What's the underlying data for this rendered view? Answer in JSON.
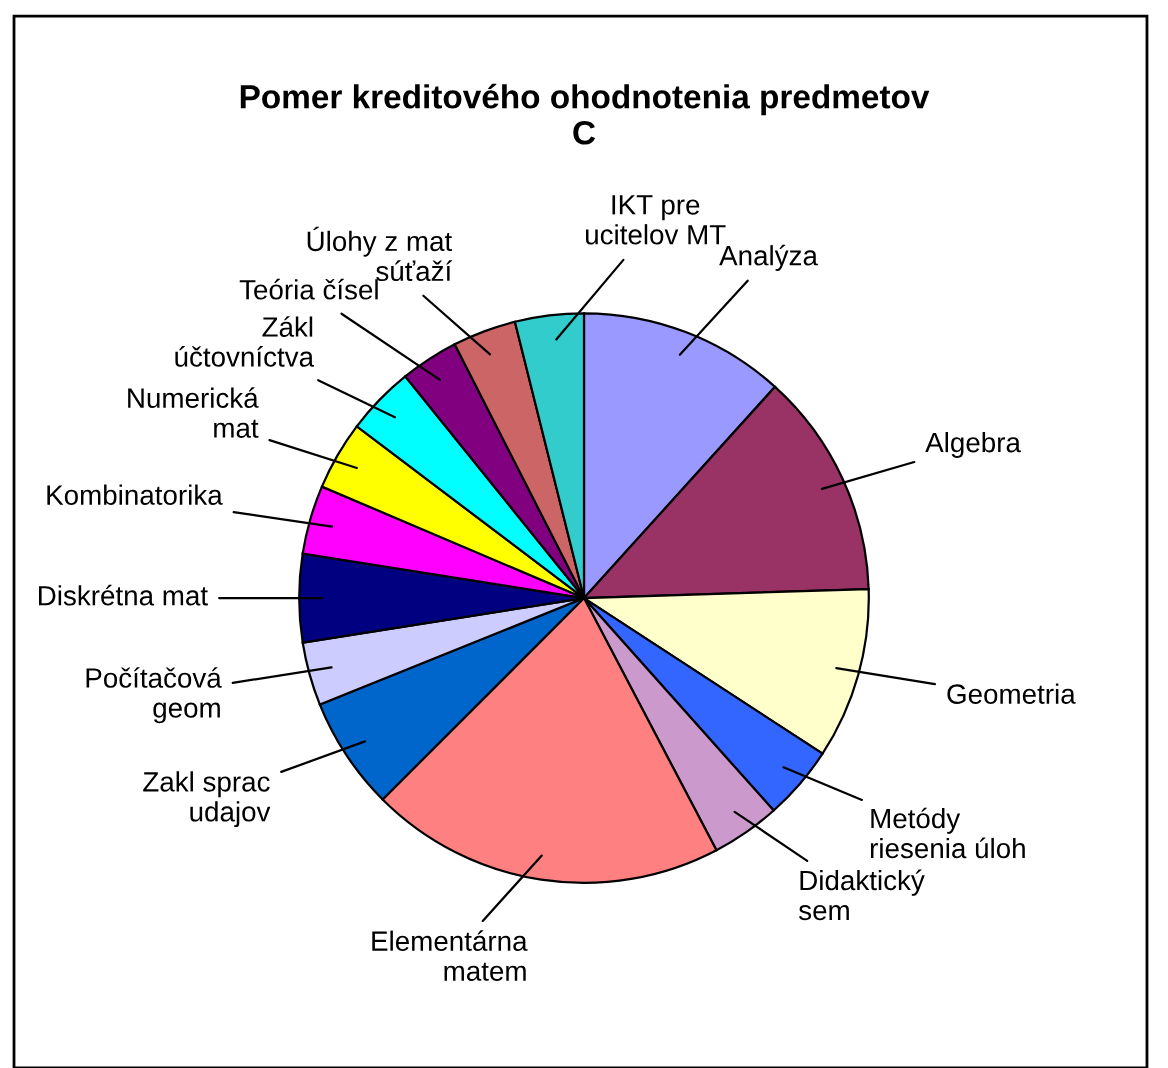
{
  "chart_data": {
    "type": "pie",
    "title": "Pomer kreditového ohodnotenia predmetov\nC",
    "categories": [
      "Analýza",
      "Algebra",
      "Geometria",
      "Metódy\nriesenia úloh",
      "Didaktický\nsem",
      "Elementárna\nmatem",
      "Zakl sprac\nudajov",
      "Počítačová\ngeom",
      "Diskrétna mat",
      "Kombinatorika",
      "Numerická\nmat",
      "Zákl\núčtovníctva",
      "Teória čísel",
      "Úlohy z mat\nsúťaží",
      "IKT pre\nucitelov MT"
    ],
    "values": [
      11.7,
      12.8,
      9.7,
      4.2,
      3.9,
      20.2,
      6.4,
      3.6,
      5.0,
      3.9,
      3.9,
      3.9,
      3.3,
      3.6,
      3.9
    ],
    "colors": [
      "#9999ff",
      "#993366",
      "#ffffcc",
      "#3366ff",
      "#cc99cc",
      "#ff8080",
      "#0066cc",
      "#ccccff",
      "#000080",
      "#ff00ff",
      "#ffff00",
      "#00ffff",
      "#800080",
      "#cc6666",
      "#33cccc"
    ],
    "legend": false
  }
}
